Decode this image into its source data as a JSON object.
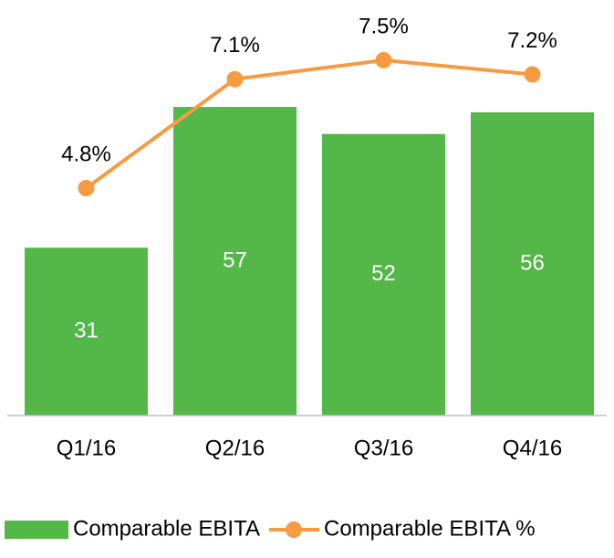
{
  "chart_data": {
    "type": "bar",
    "categories": [
      "Q1/16",
      "Q2/16",
      "Q3/16",
      "Q4/16"
    ],
    "series": [
      {
        "name": "Comparable EBITA",
        "type": "bar",
        "color": "#53b848",
        "values": [
          31,
          57,
          52,
          56
        ]
      },
      {
        "name": "Comparable EBITA %",
        "type": "line",
        "axis": "y2",
        "color": "#f79b41",
        "values": [
          4.8,
          7.1,
          7.5,
          7.2
        ],
        "value_labels": [
          "4.8%",
          "7.1%",
          "7.5%",
          "7.2%"
        ]
      }
    ],
    "ylim": [
      0,
      70
    ],
    "y2lim": [
      0,
      8
    ]
  }
}
